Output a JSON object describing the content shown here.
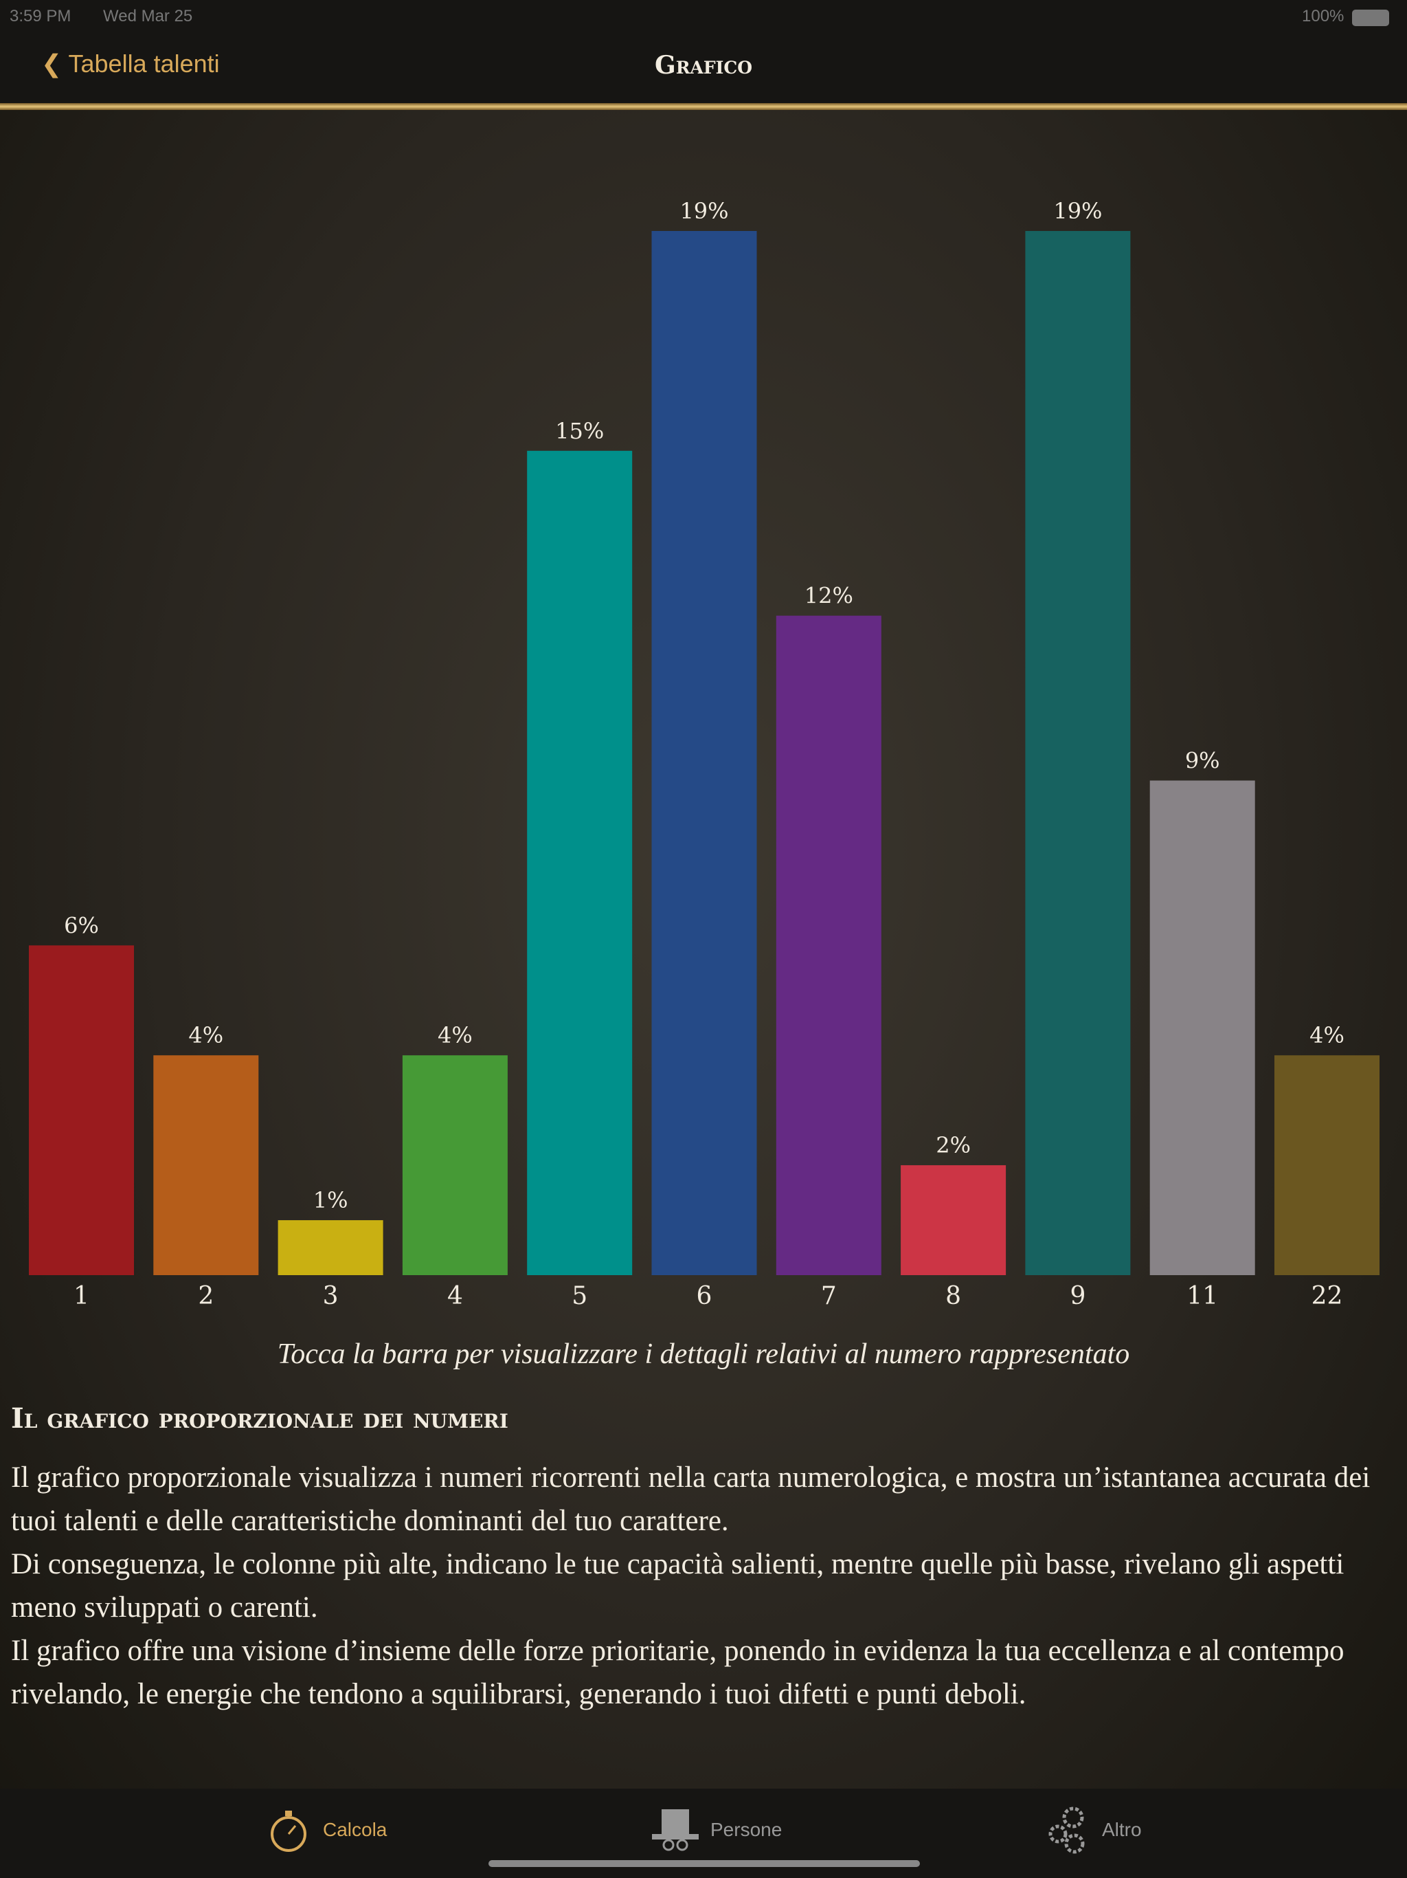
{
  "status_bar": {
    "time": "3:59 PM",
    "date": "Wed Mar 25",
    "battery": "100%"
  },
  "nav": {
    "back": "Tabella talenti",
    "title": "Grafico"
  },
  "chart_data": {
    "type": "bar",
    "categories": [
      "1",
      "2",
      "3",
      "4",
      "5",
      "6",
      "7",
      "8",
      "9",
      "11",
      "22"
    ],
    "values": [
      6,
      4,
      1,
      4,
      15,
      19,
      12,
      2,
      19,
      9,
      4
    ],
    "value_labels": [
      "6%",
      "4%",
      "1%",
      "4%",
      "15%",
      "19%",
      "12%",
      "2%",
      "19%",
      "9%",
      "4%"
    ],
    "colors": [
      "#9a1b1e",
      "#b55d1a",
      "#c9b012",
      "#469a36",
      "#00908b",
      "#254a87",
      "#652a84",
      "#cc3545",
      "#176260",
      "#888387",
      "#6b5720"
    ]
  },
  "caption": "Tocca la barra per visualizzare i dettagli relativi al numero rappresentato",
  "section": {
    "title": "Il grafico proporzionale dei numeri",
    "paragraphs": [
      "Il grafico proporzionale visualizza i numeri ricorrenti nella carta numerologica, e mostra un’istantanea accurata dei tuoi talenti e delle caratteristiche dominanti del tuo carattere.",
      "Di conseguenza, le colonne più alte, indicano le tue capacità salienti, mentre quelle più basse, rivelano gli aspetti meno sviluppati o carenti.",
      "Il grafico offre una visione d’insieme delle forze prioritarie, ponendo in evidenza la tua eccellenza e al contempo rivelando, le energie che tendono a squilibrarsi, generando i tuoi difetti e punti deboli."
    ]
  },
  "tabs": [
    {
      "label": "Calcola"
    },
    {
      "label": "Persone"
    },
    {
      "label": "Altro"
    }
  ]
}
